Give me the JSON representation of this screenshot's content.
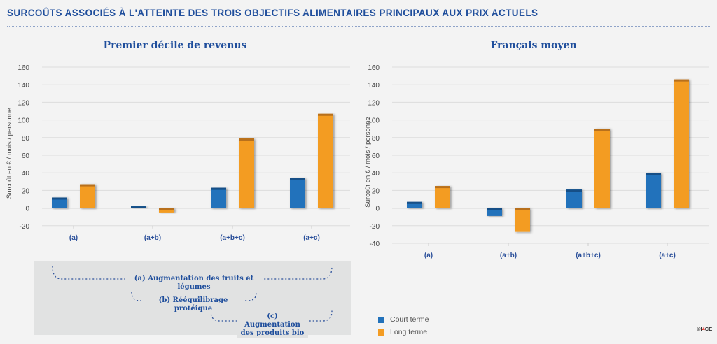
{
  "header": {
    "title": "SURCOÛTS ASSOCIÉS À L'ATTEINTE DES TROIS OBJECTIFS ALIMENTAIRES PRINCIPAUX AUX PRIX ACTUELS"
  },
  "colors": {
    "court_terme": "#2272bb",
    "long_terme": "#f39c23",
    "title_blue": "#1f4e9c"
  },
  "chart_data": [
    {
      "type": "bar",
      "title": "Premier décile de revenus",
      "ylabel": "Surcoût en € / mois / personne",
      "xlabel": "",
      "categories": [
        "(a)",
        "(a+b)",
        "(a+b+c)",
        "(a+c)"
      ],
      "ylim": [
        -20,
        160
      ],
      "yticks": [
        -20,
        0,
        20,
        40,
        60,
        80,
        100,
        120,
        140,
        160
      ],
      "grid": true,
      "series": [
        {
          "name": "Court terme",
          "values": [
            12,
            2,
            23,
            34
          ]
        },
        {
          "name": "Long terme",
          "values": [
            27,
            -5,
            79,
            107
          ]
        }
      ]
    },
    {
      "type": "bar",
      "title": "Français moyen",
      "ylabel": "Surcoût en € / mois / personne",
      "xlabel": "",
      "categories": [
        "(a)",
        "(a+b)",
        "(a+b+c)",
        "(a+c)"
      ],
      "ylim": [
        -40,
        160
      ],
      "yticks": [
        -40,
        -20,
        0,
        20,
        40,
        60,
        80,
        100,
        120,
        140,
        160
      ],
      "grid": true,
      "series": [
        {
          "name": "Court terme",
          "values": [
            7,
            -9,
            21,
            40
          ]
        },
        {
          "name": "Long terme",
          "values": [
            25,
            -27,
            90,
            146
          ]
        }
      ]
    }
  ],
  "legend": {
    "position": "bottom-right",
    "items": [
      {
        "label": "Court terme"
      },
      {
        "label": "Long terme"
      }
    ]
  },
  "objectives": {
    "a": "(a) Augmentation des fruits et légumes",
    "b": "(b) Rééquilibrage protéique",
    "c_line1": "(c) Augmentation",
    "c_line2": "des produits bio"
  },
  "logo": {
    "prefix": "©I",
    "accent": "4",
    "suffix": "CE_"
  }
}
